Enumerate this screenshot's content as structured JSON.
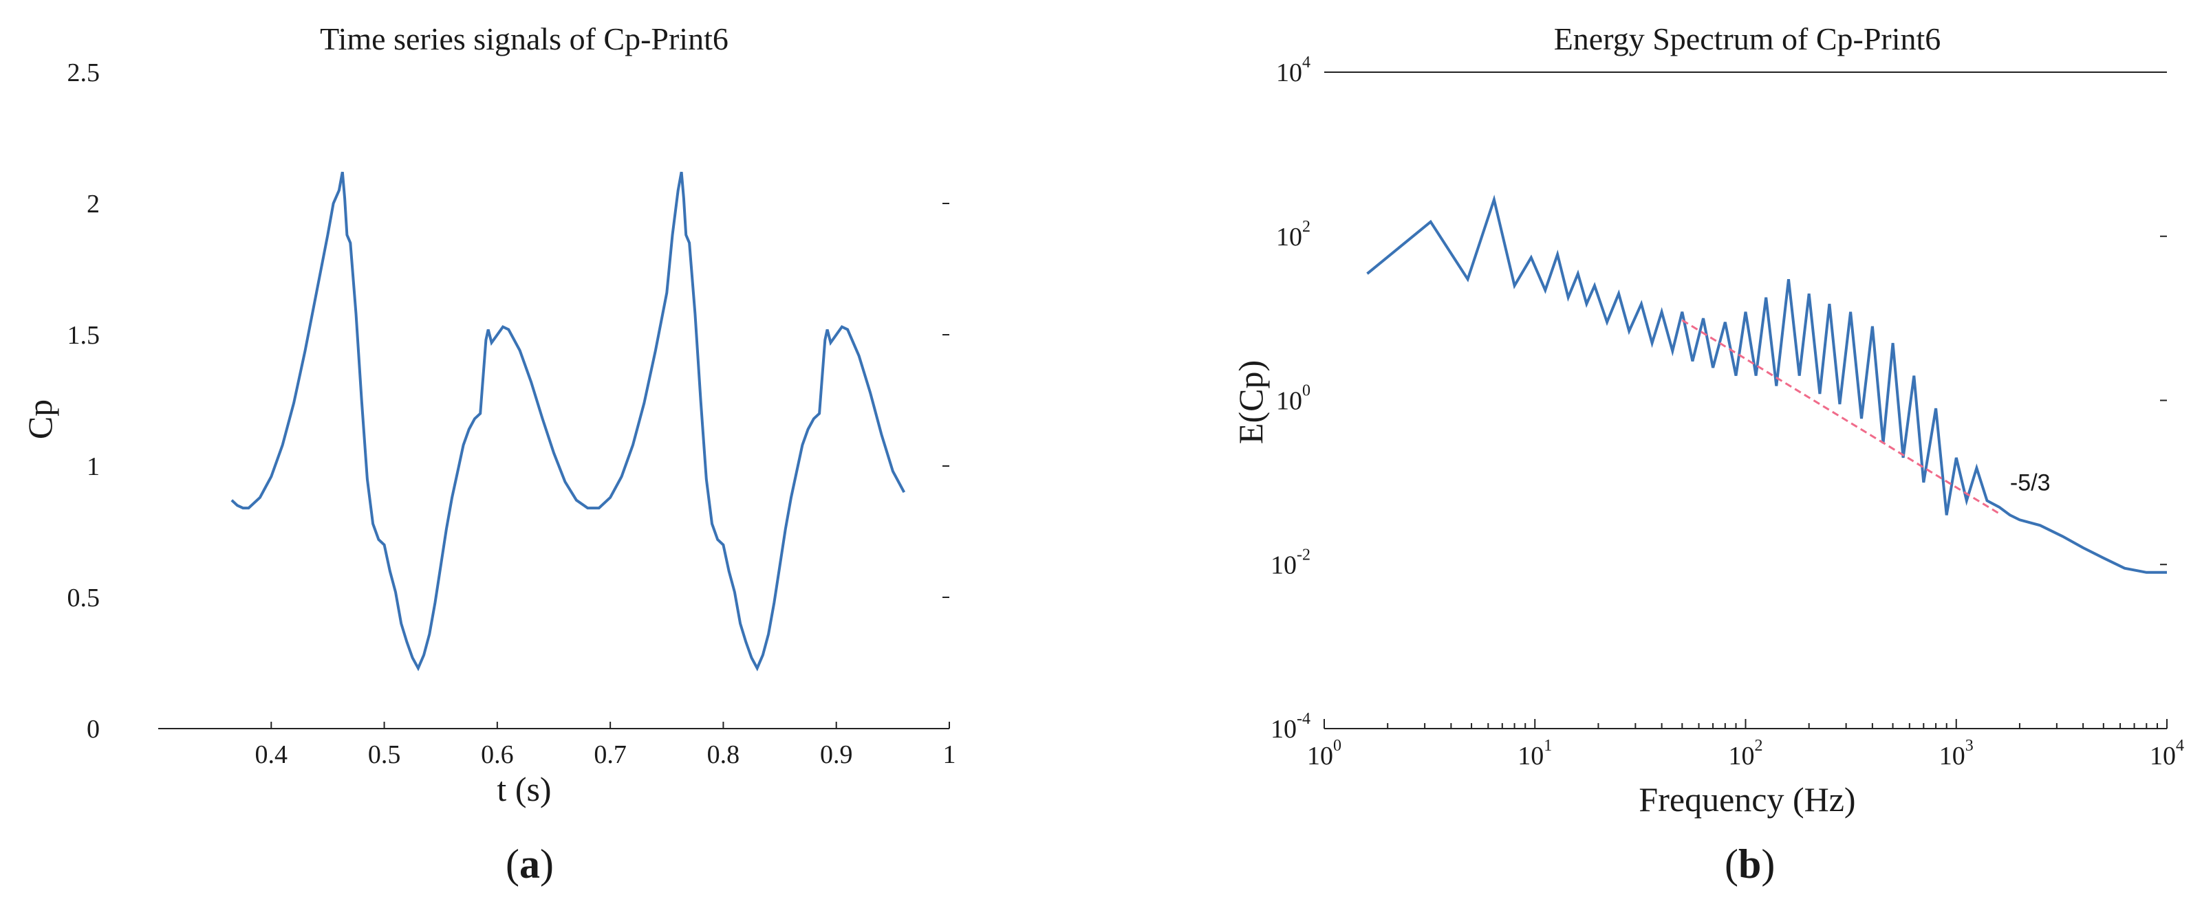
{
  "colors": {
    "series": "#3a73b5",
    "slope_line": "#f06b8a",
    "axis": "#222222"
  },
  "chart_data": [
    {
      "panel_label_text": "a",
      "type": "line",
      "title": "Time series signals of Cp-Print6",
      "xlabel": "t (s)",
      "ylabel": "Cp",
      "xlim": [
        0.3,
        1.0
      ],
      "ylim": [
        0,
        2.5
      ],
      "xticks": [
        0.4,
        0.5,
        0.6,
        0.7,
        0.8,
        0.9,
        1.0
      ],
      "xtick_labels": [
        "0.4",
        "0.5",
        "0.6",
        "0.7",
        "0.8",
        "0.9",
        "1"
      ],
      "yticks": [
        0,
        0.5,
        1,
        1.5,
        2,
        2.5
      ],
      "ytick_labels": [
        "0",
        "0.5",
        "1",
        "1.5",
        "2",
        "2.5"
      ],
      "grid": false,
      "series": [
        {
          "x": [
            0.365,
            0.37,
            0.375,
            0.38,
            0.39,
            0.4,
            0.41,
            0.42,
            0.43,
            0.44,
            0.45,
            0.455,
            0.46,
            0.463,
            0.465,
            0.467,
            0.47,
            0.475,
            0.48,
            0.485,
            0.49,
            0.495,
            0.5,
            0.505,
            0.51,
            0.515,
            0.52,
            0.525,
            0.53,
            0.535,
            0.54,
            0.545,
            0.55,
            0.555,
            0.56,
            0.565,
            0.57,
            0.575,
            0.58,
            0.585,
            0.59,
            0.592,
            0.595,
            0.6,
            0.605,
            0.61,
            0.62,
            0.63,
            0.64,
            0.65,
            0.66,
            0.67,
            0.68,
            0.69,
            0.7,
            0.71,
            0.72,
            0.73,
            0.74,
            0.75,
            0.755,
            0.76,
            0.763,
            0.765,
            0.767,
            0.77,
            0.775,
            0.78,
            0.785,
            0.79,
            0.795,
            0.8,
            0.805,
            0.81,
            0.815,
            0.82,
            0.825,
            0.83,
            0.835,
            0.84,
            0.845,
            0.85,
            0.855,
            0.86,
            0.865,
            0.87,
            0.875,
            0.88,
            0.885,
            0.89,
            0.892,
            0.895,
            0.9,
            0.905,
            0.91,
            0.92,
            0.93,
            0.94,
            0.95,
            0.96
          ],
          "y": [
            0.87,
            0.85,
            0.84,
            0.84,
            0.88,
            0.96,
            1.08,
            1.24,
            1.44,
            1.66,
            1.88,
            2.0,
            2.05,
            2.12,
            2.02,
            1.88,
            1.85,
            1.58,
            1.25,
            0.95,
            0.78,
            0.72,
            0.7,
            0.6,
            0.52,
            0.4,
            0.33,
            0.27,
            0.23,
            0.28,
            0.36,
            0.48,
            0.62,
            0.76,
            0.88,
            0.98,
            1.08,
            1.14,
            1.18,
            1.2,
            1.48,
            1.52,
            1.47,
            1.5,
            1.53,
            1.52,
            1.44,
            1.32,
            1.18,
            1.05,
            0.94,
            0.87,
            0.84,
            0.84,
            0.88,
            0.96,
            1.08,
            1.24,
            1.44,
            1.66,
            1.88,
            2.05,
            2.12,
            2.02,
            1.88,
            1.85,
            1.58,
            1.25,
            0.95,
            0.78,
            0.72,
            0.7,
            0.6,
            0.52,
            0.4,
            0.33,
            0.27,
            0.23,
            0.28,
            0.36,
            0.48,
            0.62,
            0.76,
            0.88,
            0.98,
            1.08,
            1.14,
            1.18,
            1.2,
            1.48,
            1.52,
            1.47,
            1.5,
            1.53,
            1.52,
            1.42,
            1.28,
            1.12,
            0.98,
            0.9
          ]
        }
      ]
    },
    {
      "panel_label_text": "b",
      "type": "line",
      "title": "Energy Spectrum of Cp-Print6",
      "xlabel": "Frequency (Hz)",
      "ylabel": "E(Cp)",
      "xscale": "log",
      "yscale": "log",
      "xlim": [
        1,
        10000
      ],
      "ylim": [
        0.0001,
        10000
      ],
      "xticks": [
        1,
        10,
        100,
        1000,
        10000
      ],
      "xtick_labels": [
        {
          "base": "10",
          "exp": "0"
        },
        {
          "base": "10",
          "exp": "1"
        },
        {
          "base": "10",
          "exp": "2"
        },
        {
          "base": "10",
          "exp": "3"
        },
        {
          "base": "10",
          "exp": "4"
        }
      ],
      "yticks": [
        0.0001,
        0.01,
        1,
        100,
        10000
      ],
      "ytick_labels": [
        {
          "base": "10",
          "exp": "-4"
        },
        {
          "base": "10",
          "exp": "-2"
        },
        {
          "base": "10",
          "exp": "0"
        },
        {
          "base": "10",
          "exp": "2"
        },
        {
          "base": "10",
          "exp": "4"
        }
      ],
      "grid": false,
      "series": [
        {
          "x": [
            1.6,
            3.2,
            4.8,
            6.4,
            8.0,
            9.6,
            11.2,
            12.8,
            14.4,
            16.0,
            17.6,
            19.2,
            22,
            25,
            28,
            32,
            36,
            40,
            45,
            50,
            56,
            63,
            70,
            80,
            90,
            100,
            112,
            125,
            140,
            160,
            180,
            200,
            225,
            250,
            280,
            315,
            355,
            400,
            450,
            500,
            560,
            630,
            700,
            800,
            900,
            1000,
            1120,
            1250,
            1400,
            1600,
            1800,
            2000,
            2500,
            3200,
            4000,
            5000,
            6300,
            8000,
            10000
          ],
          "y": [
            35,
            150,
            30,
            280,
            25,
            55,
            22,
            60,
            18,
            35,
            15,
            25,
            9,
            20,
            7,
            15,
            5,
            12,
            4,
            12,
            3,
            10,
            2.5,
            9,
            2,
            12,
            2,
            18,
            1.5,
            30,
            2,
            20,
            1.2,
            15,
            0.9,
            12,
            0.6,
            8,
            0.3,
            5,
            0.2,
            2,
            0.1,
            0.8,
            0.04,
            0.2,
            0.06,
            0.15,
            0.06,
            0.05,
            0.04,
            0.035,
            0.03,
            0.022,
            0.016,
            0.012,
            0.009,
            0.008,
            0.008
          ]
        },
        {
          "name": "-5/3",
          "x": [
            50,
            1600
          ],
          "y": [
            9.5,
            0.0417
          ]
        }
      ],
      "annotations": [
        {
          "text": "-5/3",
          "x": 1800,
          "y": 0.08
        }
      ]
    }
  ]
}
